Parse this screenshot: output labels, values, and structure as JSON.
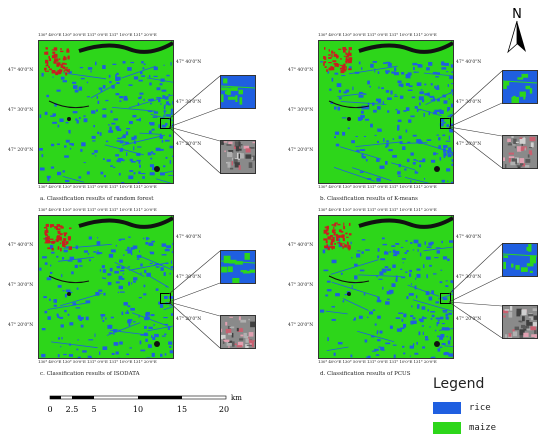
{
  "colors": {
    "rice": "#1f5fe0",
    "maize": "#2dd61a",
    "urban": "#c82020",
    "river": "#111111",
    "frame": "#333333"
  },
  "ticks": {
    "lon": "130° 40'0\"E 130° 50'0\"E 131° 0'0\"E 131° 10'0\"E 131° 20'0\"E",
    "lat_left": [
      "47° 40'0\"N",
      "47° 30'0\"N",
      "47° 20'0\"N"
    ],
    "lat_right": [
      "47° 40'0\"N",
      "47° 30'0\"N",
      "47° 20'0\"N"
    ]
  },
  "panels": [
    {
      "caption": "a. Classification results of random forest"
    },
    {
      "caption": "b. Classification results of K-means"
    },
    {
      "caption": "c. Classification results of ISODATA"
    },
    {
      "caption": "d. Classification results of PCUS"
    }
  ],
  "north": {
    "label": "N"
  },
  "scale": {
    "ticks": [
      "0",
      "2.5",
      "5",
      "10",
      "15",
      "20"
    ],
    "unit": "km"
  },
  "legend": {
    "title": "Legend",
    "items": [
      {
        "label": "rice",
        "color": "#1f5fe0"
      },
      {
        "label": "maize",
        "color": "#2dd61a"
      }
    ]
  }
}
